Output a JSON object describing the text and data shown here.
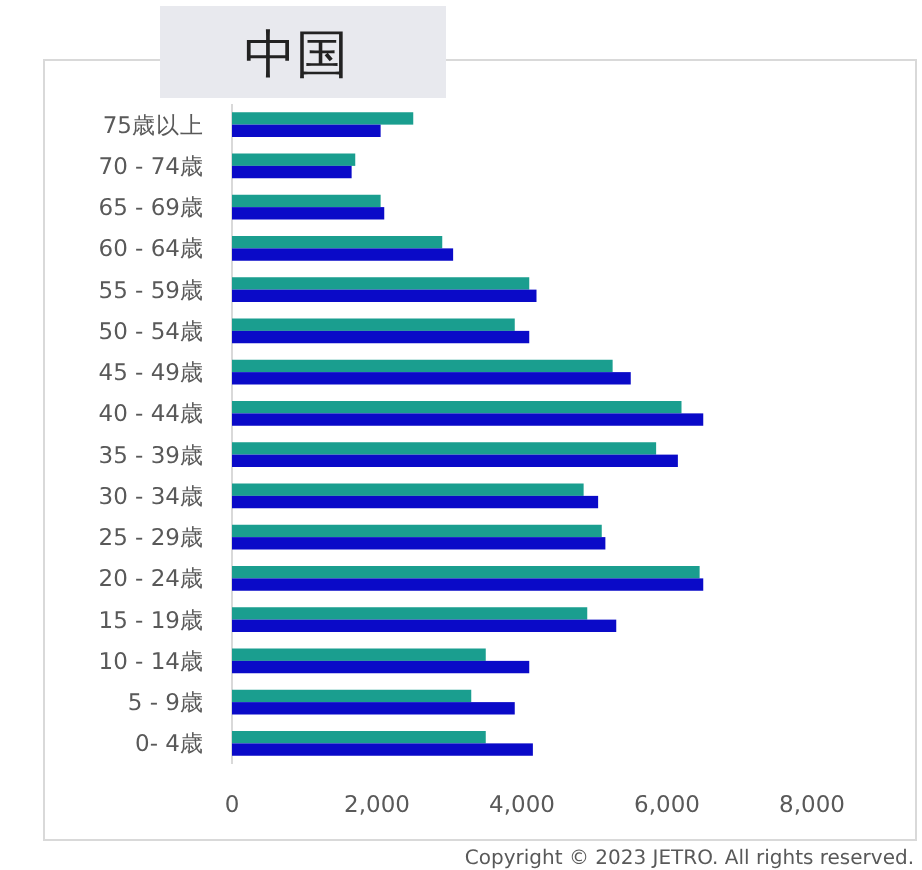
{
  "chart_data": {
    "type": "bar",
    "orientation": "horizontal",
    "title": "中国",
    "categories": [
      "75歳以上",
      "70 - 74歳",
      "65 - 69歳",
      "60 - 64歳",
      "55 - 59歳",
      "50 - 54歳",
      "45 - 49歳",
      "40 - 44歳",
      "35 - 39歳",
      "30 - 34歳",
      "25 - 29歳",
      "20 - 24歳",
      "15 - 19歳",
      "10 - 14歳",
      "5 - 9歳",
      "0- 4歳"
    ],
    "series": [
      {
        "color": "#1a9e8f",
        "values": [
          2500,
          1700,
          2050,
          2900,
          4100,
          3900,
          5250,
          6200,
          5850,
          4850,
          5100,
          6450,
          4900,
          3500,
          3300,
          3500
        ]
      },
      {
        "color": "#0a0ac8",
        "values": [
          2050,
          1650,
          2100,
          3050,
          4200,
          4100,
          5500,
          6500,
          6150,
          5050,
          5150,
          6500,
          5300,
          4100,
          3900,
          4150
        ]
      }
    ],
    "xlim": [
      0,
      8000
    ],
    "xticks": [
      {
        "value": 0,
        "label": "0"
      },
      {
        "value": 2000,
        "label": "2,000"
      },
      {
        "value": 4000,
        "label": "4,000"
      },
      {
        "value": 6000,
        "label": "6,000"
      },
      {
        "value": 8000,
        "label": "8,000"
      }
    ],
    "grid": false,
    "annotations": [
      "Copyright © 2023 JETRO. All rights reserved."
    ]
  }
}
